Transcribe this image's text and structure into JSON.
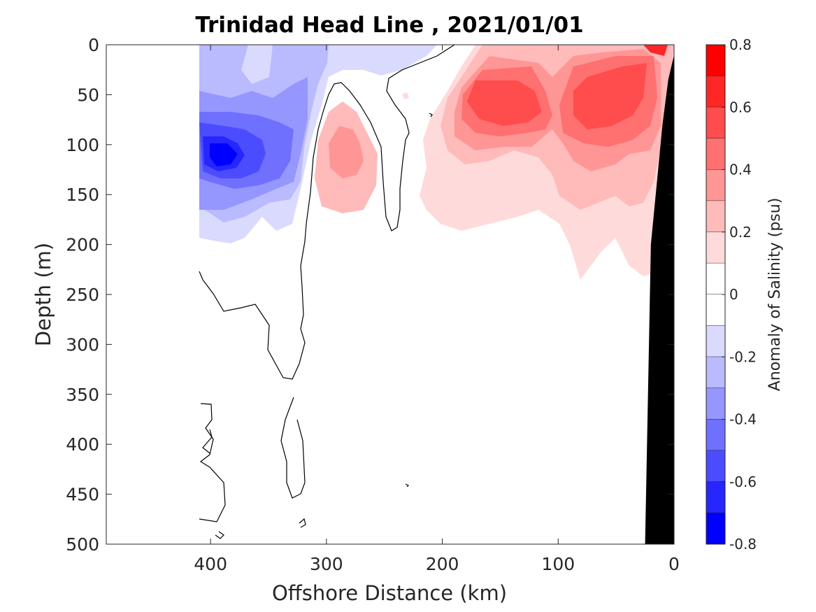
{
  "chart_data": {
    "type": "heatmap",
    "title": "Trinidad Head Line , 2021/01/01",
    "xlabel": "Offshore Distance (km)",
    "ylabel": "Depth (m)",
    "xlim": [
      490,
      0
    ],
    "ylim": [
      0,
      500
    ],
    "x_reversed": true,
    "y_reversed": true,
    "x_ticks": [
      "400",
      "300",
      "200",
      "100",
      "0"
    ],
    "x_tick_values": [
      400,
      300,
      200,
      100,
      0
    ],
    "y_ticks": [
      "0",
      "50",
      "100",
      "150",
      "200",
      "250",
      "300",
      "350",
      "400",
      "450",
      "500"
    ],
    "y_tick_values": [
      0,
      50,
      100,
      150,
      200,
      250,
      300,
      350,
      400,
      450,
      500
    ],
    "colorbar": {
      "label": "Anomaly of Salinity (psu)",
      "range": [
        -0.8,
        0.8
      ],
      "tick_labels": [
        "0.8",
        "0.6",
        "0.4",
        "0.2",
        "0",
        "-0.2",
        "-0.4",
        "-0.6",
        "-0.8"
      ],
      "tick_values": [
        0.8,
        0.6,
        0.4,
        0.2,
        0,
        -0.2,
        -0.4,
        -0.6,
        -0.8
      ],
      "levels": [
        {
          "low": 0.7,
          "high": 0.8,
          "color": "#ff0000"
        },
        {
          "low": 0.6,
          "high": 0.7,
          "color": "#ff2626"
        },
        {
          "low": 0.5,
          "high": 0.6,
          "color": "#ff4c4c"
        },
        {
          "low": 0.4,
          "high": 0.5,
          "color": "#ff7070"
        },
        {
          "low": 0.3,
          "high": 0.4,
          "color": "#ff9696"
        },
        {
          "low": 0.2,
          "high": 0.3,
          "color": "#ffbaba"
        },
        {
          "low": 0.1,
          "high": 0.2,
          "color": "#ffdada"
        },
        {
          "low": 0.0,
          "high": 0.1,
          "color": "#ffffff"
        },
        {
          "low": -0.1,
          "high": 0.0,
          "color": "#ffffff"
        },
        {
          "low": -0.2,
          "high": -0.1,
          "color": "#dadaff"
        },
        {
          "low": -0.3,
          "high": -0.2,
          "color": "#babaff"
        },
        {
          "low": -0.4,
          "high": -0.3,
          "color": "#9696ff"
        },
        {
          "low": -0.5,
          "high": -0.4,
          "color": "#7070ff"
        },
        {
          "low": -0.6,
          "high": -0.5,
          "color": "#4c4cff"
        },
        {
          "low": -0.7,
          "high": -0.6,
          "color": "#2626ff"
        },
        {
          "low": -0.8,
          "high": -0.7,
          "color": "#0000ff"
        }
      ]
    },
    "bathymetry_color": "#000000",
    "contour_level": 0,
    "grid": false,
    "anomaly_features": [
      {
        "x": 370,
        "y": 110,
        "value": -0.7
      },
      {
        "x": 320,
        "y": 20,
        "value": -0.2
      },
      {
        "x": 285,
        "y": 110,
        "value": 0.3
      },
      {
        "x": 150,
        "y": 65,
        "value": 0.55
      },
      {
        "x": 60,
        "y": 70,
        "value": 0.55
      },
      {
        "x": 20,
        "y": 5,
        "value": 0.7
      },
      {
        "x": 180,
        "y": 160,
        "value": 0.15
      }
    ],
    "bathymetry": [
      [
        25,
        500
      ],
      [
        20,
        200
      ],
      [
        10,
        80
      ],
      [
        5,
        35
      ],
      [
        0,
        10
      ],
      [
        0,
        500
      ]
    ]
  }
}
